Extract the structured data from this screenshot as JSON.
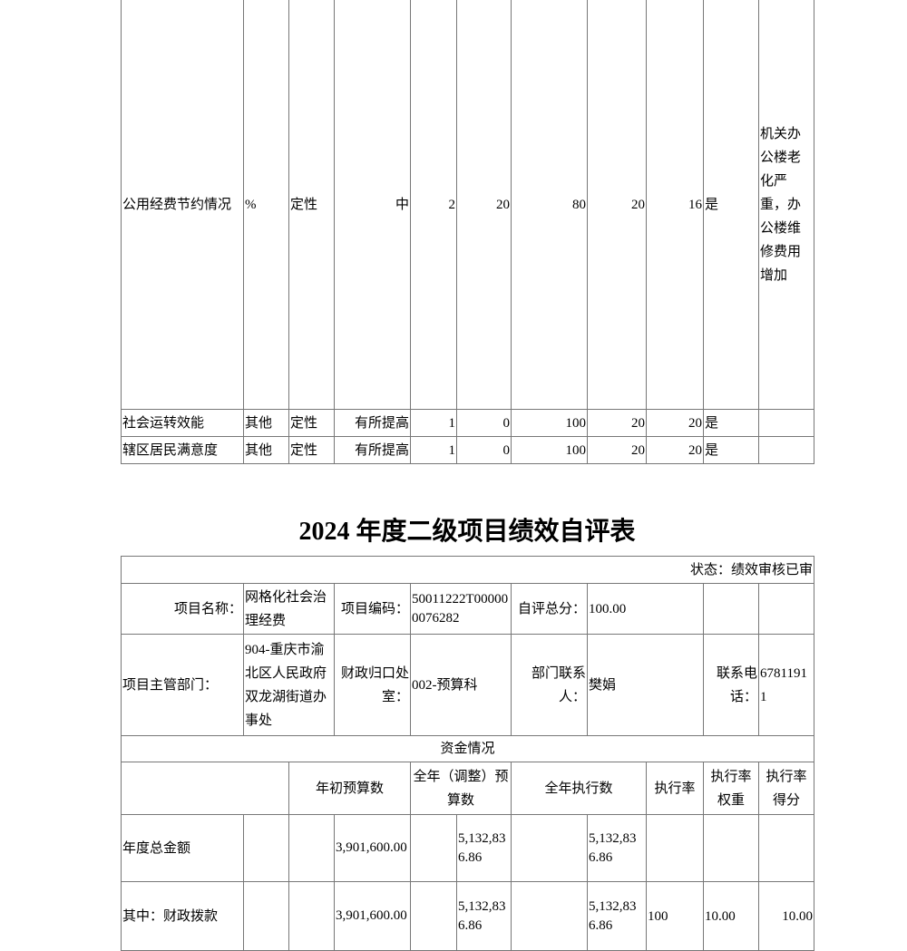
{
  "indicator_table": {
    "rows": [
      {
        "name": "公用经费节约情况",
        "unit": "%",
        "nature": "定性",
        "target": "中",
        "weight": "2",
        "c5": "20",
        "c6": "80",
        "c7": "20",
        "score": "16",
        "met": "是",
        "remark": "机关办公楼老化严重，办公楼维修费用增加"
      },
      {
        "name": "社会运转效能",
        "unit": "其他",
        "nature": "定性",
        "target": "有所提高",
        "weight": "1",
        "c5": "0",
        "c6": "100",
        "c7": "20",
        "score": "20",
        "met": "是",
        "remark": ""
      },
      {
        "name": "辖区居民满意度",
        "unit": "其他",
        "nature": "定性",
        "target": "有所提高",
        "weight": "1",
        "c5": "0",
        "c6": "100",
        "c7": "20",
        "score": "20",
        "met": "是",
        "remark": ""
      }
    ]
  },
  "title": "2024 年度二级项目绩效自评表",
  "eval_table": {
    "status": "状态：绩效审核已审",
    "project_name_label": "项目名称：",
    "project_name": "网格化社会治理经费",
    "project_code_label": "项目编码：",
    "project_code": "50011222T000000076282",
    "self_score_label": "自评总分：",
    "self_score": "100.00",
    "dept_label": "项目主管部门：",
    "dept": "904-重庆市渝北区人民政府双龙湖街道办事处",
    "finance_office_label": "财政归口处室：",
    "finance_office": "002-预算科",
    "contact_label": "部门联系人：",
    "contact": "樊娟",
    "phone_label": "联系电话：",
    "phone": "67811911",
    "funds_section": "资金情况",
    "headers": {
      "initial": "年初预算数",
      "adjusted": "全年（调整）预算数",
      "executed": "全年执行数",
      "rate": "执行率",
      "rate_weight": "执行率权重",
      "rate_score": "执行率得分"
    },
    "fund_rows": [
      {
        "label": "年度总金额",
        "initial": "3,901,600.00",
        "adjusted": "5,132,836.86",
        "executed": "5,132,836.86",
        "rate": "",
        "weight": "",
        "score": ""
      },
      {
        "label": "其中：财政拨款",
        "initial": "3,901,600.00",
        "adjusted": "5,132,836.86",
        "executed": "5,132,836.86",
        "rate": "100",
        "weight": "10.00",
        "score": "10.00"
      }
    ]
  }
}
